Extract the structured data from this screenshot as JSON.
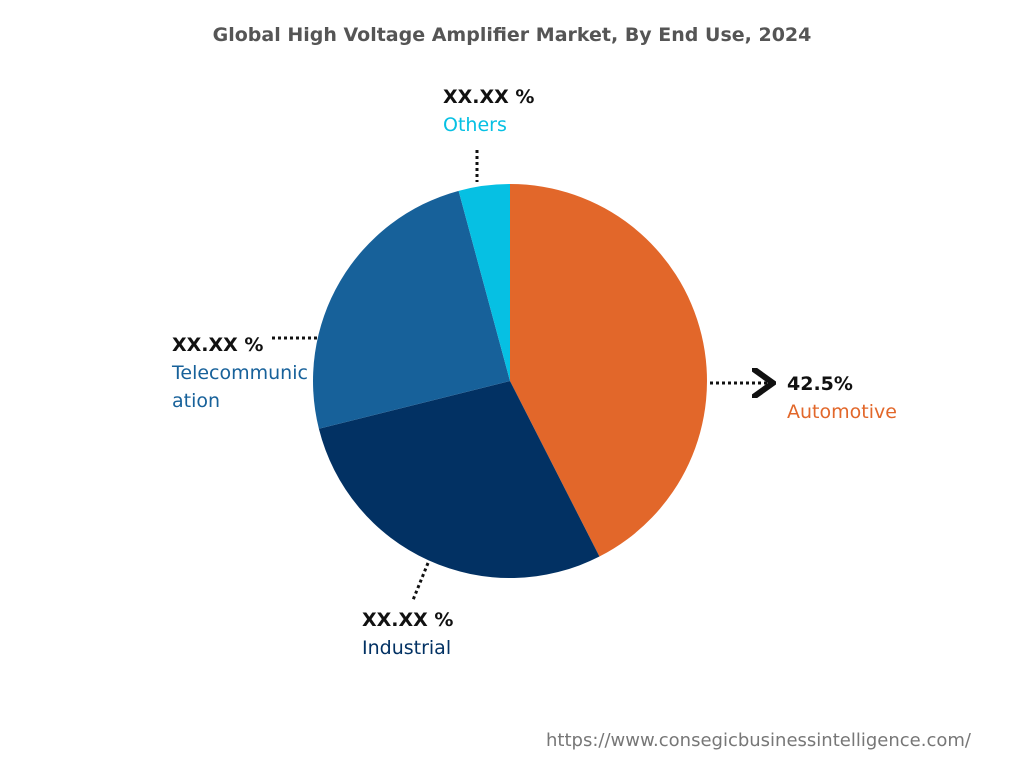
{
  "chart_data": {
    "type": "pie",
    "title": "Global High Voltage Amplifier Market, By End Use, 2024",
    "categories": [
      "Automotive",
      "Industrial",
      "Telecommunication",
      "Others"
    ],
    "values": [
      42.5,
      28.6,
      24.7,
      4.2
    ],
    "value_labels": [
      "42.5%",
      "XX.XX %",
      "XX.XX %",
      "XX.XX %"
    ],
    "colors": [
      "#e2672a",
      "#023163",
      "#17619a",
      "#06c0e3"
    ],
    "source": "https://www.consegicbusinessintelligence.com/"
  }
}
